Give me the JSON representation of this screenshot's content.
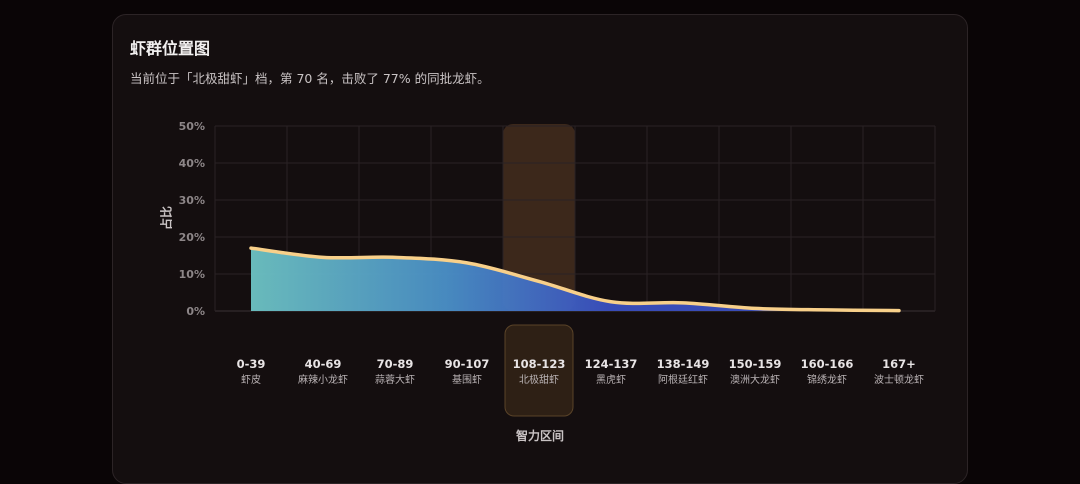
{
  "card": {
    "title": "虾群位置图",
    "subtitle": "当前位于「北极甜虾」档，第 70 名，击败了 77% 的同批龙虾。"
  },
  "chart_data": {
    "type": "area",
    "ylabel": "占比",
    "xlabel": "智力区间",
    "ylim": [
      0,
      50
    ],
    "yticks": [
      "0%",
      "10%",
      "20%",
      "30%",
      "40%",
      "50%"
    ],
    "categories": [
      {
        "range": "0-39",
        "name": "虾皮"
      },
      {
        "range": "40-69",
        "name": "麻辣小龙虾"
      },
      {
        "range": "70-89",
        "name": "蒜蓉大虾"
      },
      {
        "range": "90-107",
        "name": "基围虾"
      },
      {
        "range": "108-123",
        "name": "北极甜虾"
      },
      {
        "range": "124-137",
        "name": "黑虎虾"
      },
      {
        "range": "138-149",
        "name": "阿根廷红虾"
      },
      {
        "range": "150-159",
        "name": "澳洲大龙虾"
      },
      {
        "range": "160-166",
        "name": "锦绣龙虾"
      },
      {
        "range": "167+",
        "name": "波士顿龙虾"
      }
    ],
    "values": [
      17,
      14.5,
      14.5,
      13,
      8,
      2.5,
      2.2,
      0.7,
      0.3,
      0.1
    ],
    "highlight_index": 4,
    "grid": true,
    "colors": {
      "line": "#f8d08a",
      "area_left": "#6dc3c4",
      "area_mid": "#4a90c8",
      "area_right": "#3a4fc0",
      "highlight": "#4a3220",
      "grid": "#2a2224"
    }
  }
}
